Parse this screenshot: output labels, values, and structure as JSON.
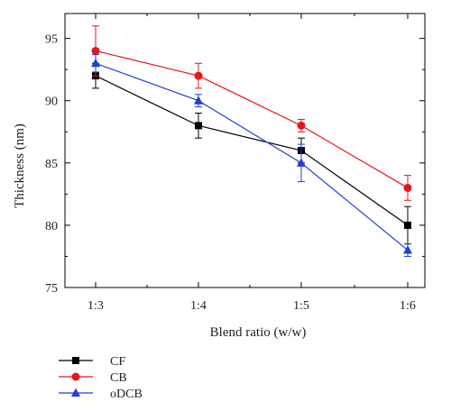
{
  "chart_data": {
    "type": "line",
    "categories": [
      "1:3",
      "1:4",
      "1:5",
      "1:6"
    ],
    "xlabel": "Blend ratio (w/w)",
    "ylabel": "Thickness (nm)",
    "ylim": [
      75,
      97
    ],
    "yticks": [
      75,
      80,
      85,
      90,
      95
    ],
    "grid": false,
    "legend": "bottom-left, below plot",
    "series": [
      {
        "name": "CF",
        "color": "#000000",
        "marker": "square",
        "values": [
          92,
          88,
          86,
          80
        ],
        "errors": [
          1.0,
          1.0,
          1.0,
          1.5
        ]
      },
      {
        "name": "CB",
        "color": "#e8141b",
        "marker": "circle",
        "values": [
          94,
          92,
          88,
          83
        ],
        "errors": [
          2.0,
          1.0,
          0.5,
          1.0
        ]
      },
      {
        "name": "oDCB",
        "color": "#1f3fd6",
        "marker": "triangle",
        "values": [
          93,
          90,
          85,
          78
        ],
        "errors": [
          0.7,
          0.5,
          1.5,
          0.5
        ]
      }
    ]
  }
}
